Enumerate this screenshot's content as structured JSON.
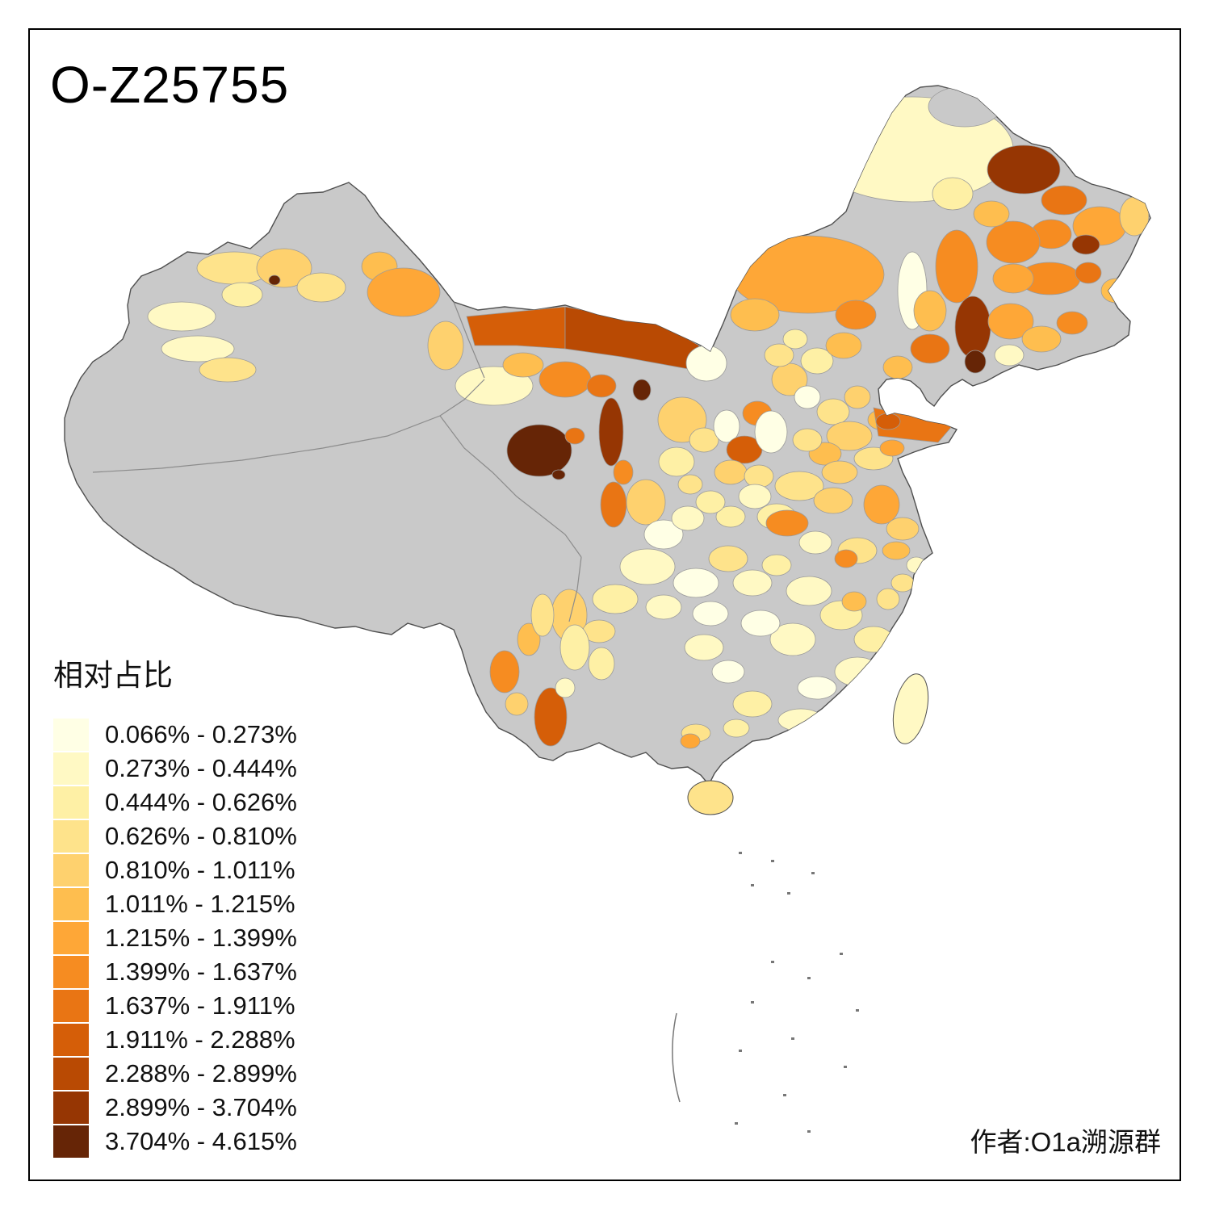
{
  "title": "O-Z25755",
  "legend": {
    "title": "相对占比",
    "classes": [
      {
        "label": "0.066% - 0.273%",
        "color": "#FFFFE5"
      },
      {
        "label": "0.273% - 0.444%",
        "color": "#FFF9C4"
      },
      {
        "label": "0.444% - 0.626%",
        "color": "#FEF0A5"
      },
      {
        "label": "0.626% - 0.810%",
        "color": "#FEE38B"
      },
      {
        "label": "0.810% - 1.011%",
        "color": "#FED16E"
      },
      {
        "label": "1.011% - 1.215%",
        "color": "#FEBE4F"
      },
      {
        "label": "1.215% - 1.399%",
        "color": "#FEA737"
      },
      {
        "label": "1.399% - 1.637%",
        "color": "#F68C21"
      },
      {
        "label": "1.637% - 1.911%",
        "color": "#E97514"
      },
      {
        "label": "1.911% - 2.288%",
        "color": "#D55E08"
      },
      {
        "label": "2.288% - 2.899%",
        "color": "#B94A03"
      },
      {
        "label": "2.899% - 3.704%",
        "color": "#963603"
      },
      {
        "label": "3.704% - 4.615%",
        "color": "#662506"
      }
    ]
  },
  "map": {
    "no_data_color": "#C9C9C9",
    "region_border_color": "#9B9B9B",
    "outline_color": "#4F4F4F",
    "background": "#FFFFFF"
  },
  "author": "作者:O1a溯源群",
  "chart_data": {
    "type": "heatmap",
    "title": "O-Z25755",
    "legend_title": "相对占比",
    "breaks_percent": [
      0.066,
      0.273,
      0.444,
      0.626,
      0.81,
      1.011,
      1.215,
      1.399,
      1.637,
      1.911,
      2.288,
      2.899,
      3.704,
      4.615
    ],
    "palette": [
      "#FFFFE5",
      "#FFF9C4",
      "#FEF0A5",
      "#FEE38B",
      "#FED16E",
      "#FEBE4F",
      "#FEA737",
      "#F68C21",
      "#E97514",
      "#D55E08",
      "#B94A03",
      "#963603",
      "#662506"
    ],
    "no_data_color": "#C9C9C9",
    "note": "Choropleth of prefecture-level relative proportions across China; gray = no data"
  }
}
